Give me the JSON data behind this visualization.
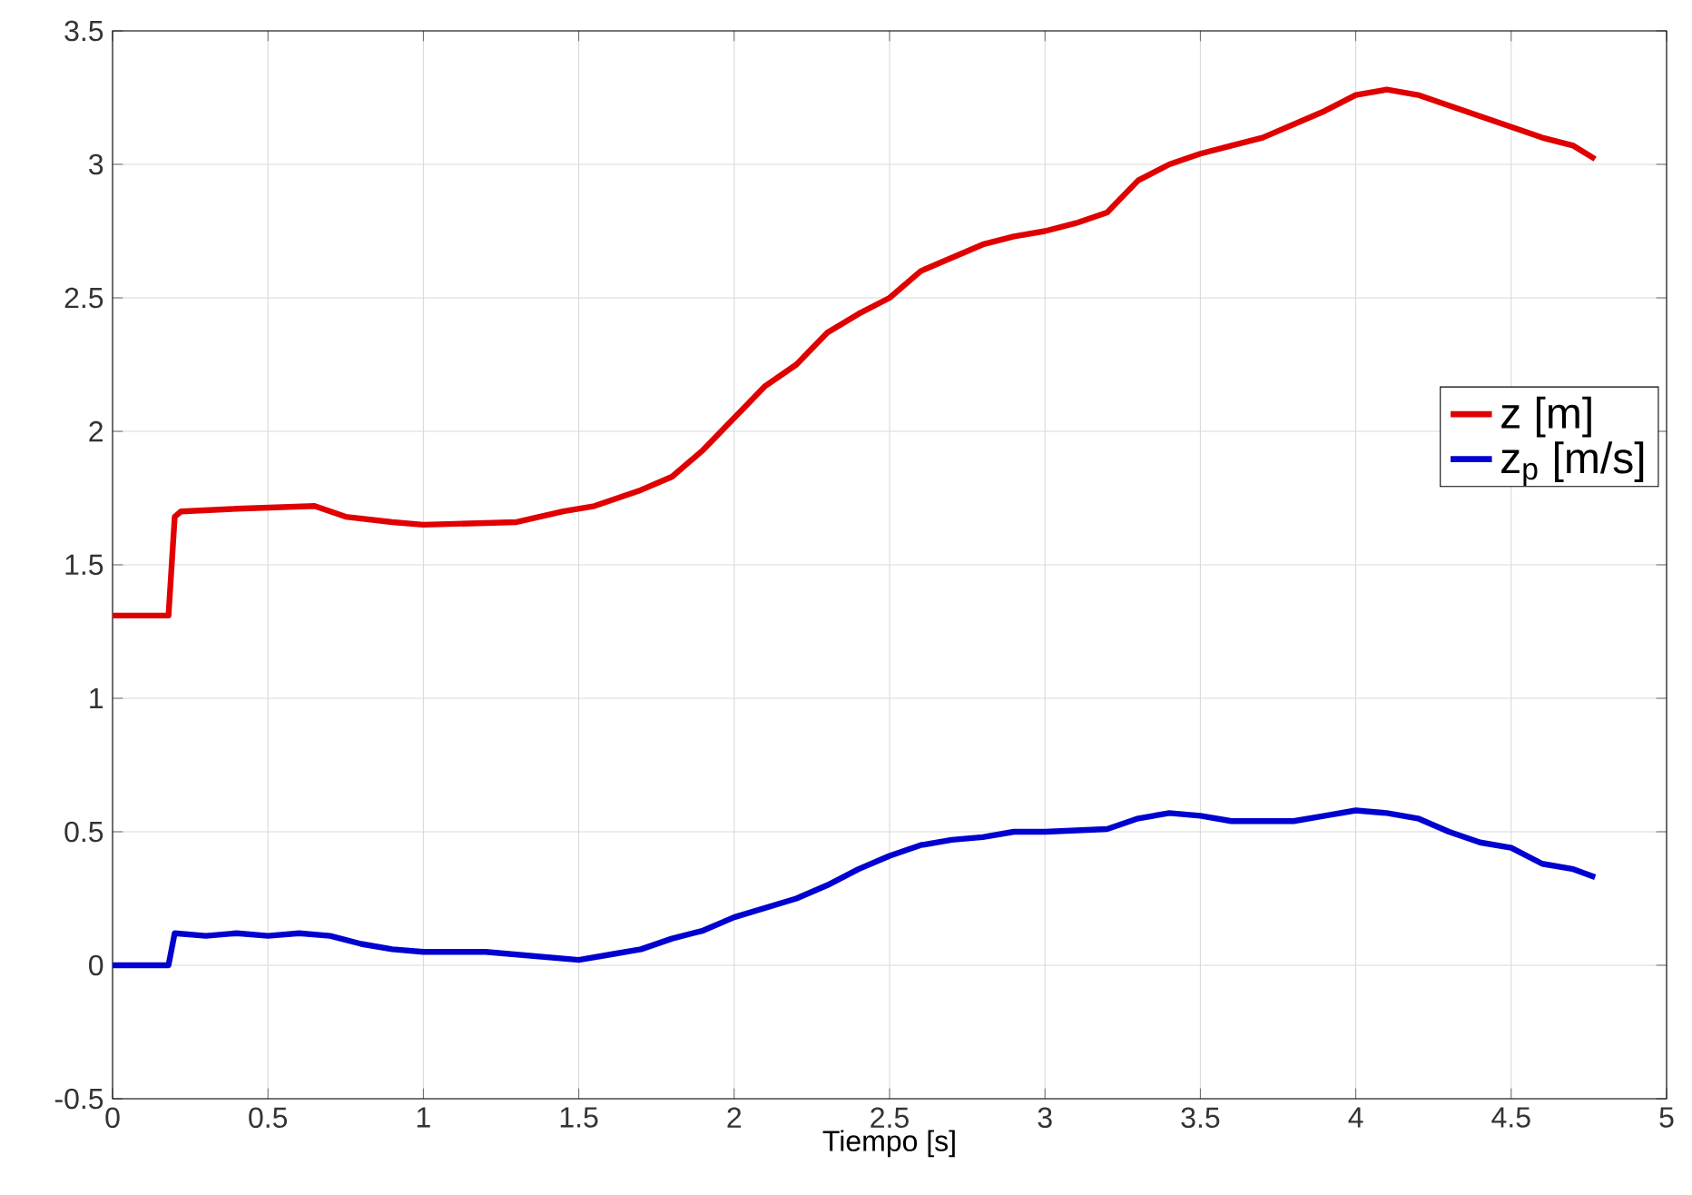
{
  "chart_data": {
    "type": "line",
    "xlabel": "Tiempo [s]",
    "xlim": [
      0,
      5
    ],
    "ylim": [
      -0.5,
      3.5
    ],
    "xticks": [
      0,
      0.5,
      1,
      1.5,
      2,
      2.5,
      3,
      3.5,
      4,
      4.5,
      5
    ],
    "yticks": [
      -0.5,
      0,
      0.5,
      1,
      1.5,
      2,
      2.5,
      3,
      3.5
    ],
    "grid": true,
    "legend": "right",
    "line_style": "solid",
    "series": [
      {
        "name": "z [m]",
        "color": "#e00000",
        "x": [
          0,
          0.18,
          0.2,
          0.22,
          0.4,
          0.65,
          0.75,
          0.9,
          1.0,
          1.3,
          1.45,
          1.55,
          1.7,
          1.8,
          1.9,
          2.0,
          2.1,
          2.2,
          2.3,
          2.4,
          2.5,
          2.6,
          2.7,
          2.8,
          2.9,
          3.0,
          3.1,
          3.2,
          3.3,
          3.4,
          3.5,
          3.6,
          3.7,
          3.8,
          3.9,
          4.0,
          4.1,
          4.2,
          4.3,
          4.4,
          4.5,
          4.6,
          4.7,
          4.77
        ],
        "values": [
          1.31,
          1.31,
          1.68,
          1.7,
          1.71,
          1.72,
          1.68,
          1.66,
          1.65,
          1.66,
          1.7,
          1.72,
          1.78,
          1.83,
          1.93,
          2.05,
          2.17,
          2.25,
          2.37,
          2.44,
          2.5,
          2.6,
          2.65,
          2.7,
          2.73,
          2.75,
          2.78,
          2.82,
          2.94,
          3.0,
          3.04,
          3.07,
          3.1,
          3.15,
          3.2,
          3.26,
          3.28,
          3.26,
          3.22,
          3.18,
          3.14,
          3.1,
          3.07,
          3.02
        ]
      },
      {
        "name": "z$_{p}$ [m/s]",
        "color": "#0000d0",
        "x": [
          0,
          0.18,
          0.2,
          0.3,
          0.4,
          0.5,
          0.6,
          0.7,
          0.8,
          0.9,
          1.0,
          1.2,
          1.3,
          1.5,
          1.6,
          1.7,
          1.8,
          1.9,
          2.0,
          2.2,
          2.3,
          2.4,
          2.5,
          2.6,
          2.7,
          2.8,
          2.9,
          3.0,
          3.2,
          3.3,
          3.4,
          3.5,
          3.6,
          3.8,
          3.9,
          4.0,
          4.1,
          4.2,
          4.3,
          4.4,
          4.5,
          4.6,
          4.7,
          4.77
        ],
        "values": [
          0,
          0,
          0.12,
          0.11,
          0.12,
          0.11,
          0.12,
          0.11,
          0.08,
          0.06,
          0.05,
          0.05,
          0.04,
          0.02,
          0.04,
          0.06,
          0.1,
          0.13,
          0.18,
          0.25,
          0.3,
          0.36,
          0.41,
          0.45,
          0.47,
          0.48,
          0.5,
          0.5,
          0.51,
          0.55,
          0.57,
          0.56,
          0.54,
          0.54,
          0.56,
          0.58,
          0.57,
          0.55,
          0.5,
          0.46,
          0.44,
          0.38,
          0.36,
          0.33
        ]
      }
    ]
  }
}
